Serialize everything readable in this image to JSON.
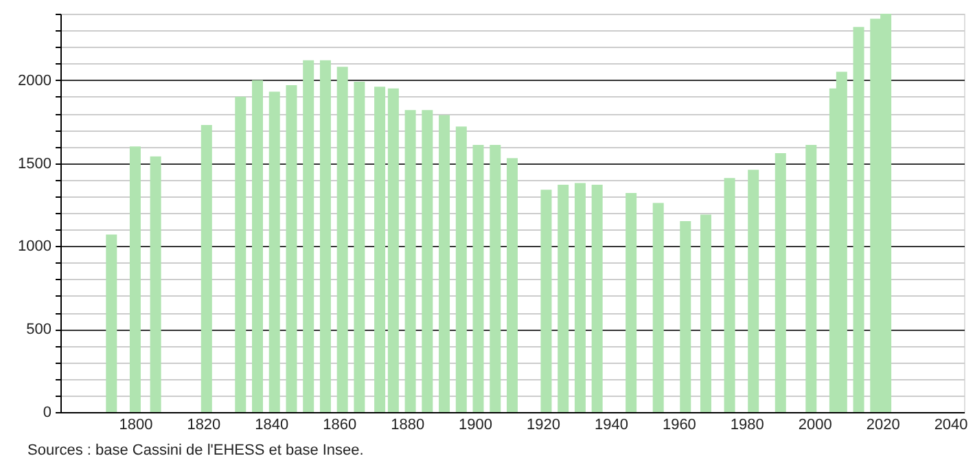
{
  "chart_data": {
    "type": "bar",
    "annotations": [
      "Sources : base Cassini de l'EHESS et base Insee."
    ],
    "x": [
      1793,
      1800,
      1806,
      1821,
      1831,
      1836,
      1841,
      1846,
      1851,
      1856,
      1861,
      1866,
      1872,
      1876,
      1881,
      1886,
      1891,
      1896,
      1901,
      1906,
      1911,
      1921,
      1926,
      1931,
      1936,
      1946,
      1954,
      1962,
      1968,
      1975,
      1982,
      1990,
      1999,
      2006,
      2008,
      2013,
      2018,
      2021
    ],
    "values": [
      1070,
      1600,
      1540,
      1730,
      1900,
      2000,
      1930,
      1970,
      2120,
      2120,
      2080,
      1990,
      1960,
      1950,
      1820,
      1820,
      1790,
      1720,
      1610,
      1610,
      1530,
      1340,
      1370,
      1380,
      1370,
      1320,
      1260,
      1150,
      1190,
      1410,
      1460,
      1560,
      1610,
      1950,
      2050,
      2320,
      2370,
      2400
    ],
    "color": "#b0e4b0",
    "xlim": [
      1780,
      2042
    ],
    "ylim": [
      0,
      2400
    ],
    "xticks": [
      1800,
      1820,
      1840,
      1860,
      1880,
      1900,
      1920,
      1940,
      1960,
      1980,
      2000,
      2020,
      2040
    ],
    "yticks": [
      0,
      {
        "value": 100,
        "label": null
      },
      {
        "value": 200,
        "label": null
      },
      {
        "value": 300,
        "label": null
      },
      {
        "value": 400,
        "label": null
      },
      500,
      {
        "value": 600,
        "label": null
      },
      {
        "value": 700,
        "label": null
      },
      {
        "value": 800,
        "label": null
      },
      {
        "value": 900,
        "label": null
      },
      1000,
      {
        "value": 1100,
        "label": null
      },
      {
        "value": 1200,
        "label": null
      },
      {
        "value": 1300,
        "label": null
      },
      {
        "value": 1400,
        "label": null
      },
      1500,
      {
        "value": 1600,
        "label": null
      },
      {
        "value": 1700,
        "label": null
      },
      {
        "value": 1800,
        "label": null
      },
      {
        "value": 1900,
        "label": null
      },
      2000,
      {
        "value": 2100,
        "label": null
      },
      {
        "value": 2200,
        "label": null
      },
      {
        "value": 2300,
        "label": null
      },
      {
        "value": 2400,
        "label": null
      }
    ],
    "grid": "y"
  }
}
